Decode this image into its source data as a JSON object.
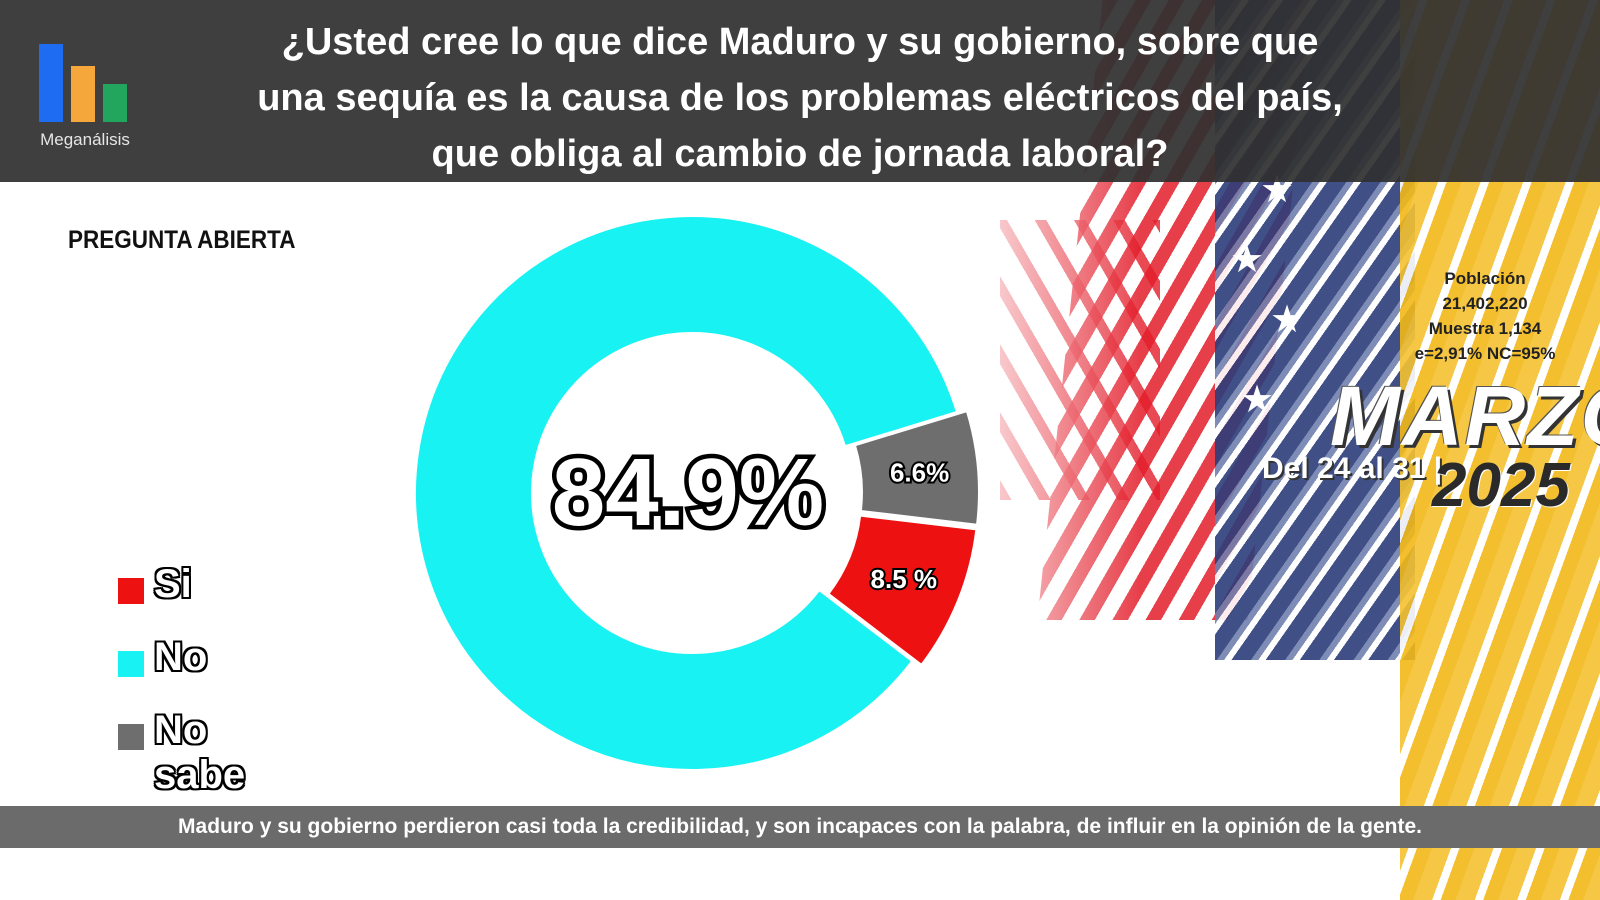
{
  "header": {
    "logo_name": "Meganálisis",
    "question_line1": "¿Usted cree lo que dice Maduro y su gobierno, sobre que",
    "question_line2": "una sequía es la causa de los problemas eléctricos del país,",
    "question_line3": "que obliga al cambio de jornada laboral?"
  },
  "tag": "PREGUNTA ABIERTA",
  "meta": {
    "poblacion_label": "Población",
    "poblacion_value": "21,402,220",
    "muestra": "Muestra 1,134",
    "error": "e=2,91%  NC=95%",
    "month": "MARZO",
    "dates": "Del 24 al 31 |",
    "year": "2025"
  },
  "footer": "Maduro y su gobierno perdieron casi toda la credibilidad, y son incapaces con la palabra, de influir en la opinión de la gente.",
  "colors": {
    "si": "#ee1111",
    "no": "#19f2f2",
    "no_sabe": "#6e6e6e"
  },
  "chart_data": {
    "type": "pie",
    "subtype": "donut",
    "categories": [
      "Si",
      "No",
      "No sabe"
    ],
    "values": [
      8.5,
      84.9,
      6.6
    ],
    "data_labels": [
      "8.5 %",
      "84.9%",
      "6.6%"
    ],
    "center_label": "84.9%",
    "legend": [
      "Si",
      "No",
      "No sabe"
    ],
    "legend_position": "left"
  }
}
